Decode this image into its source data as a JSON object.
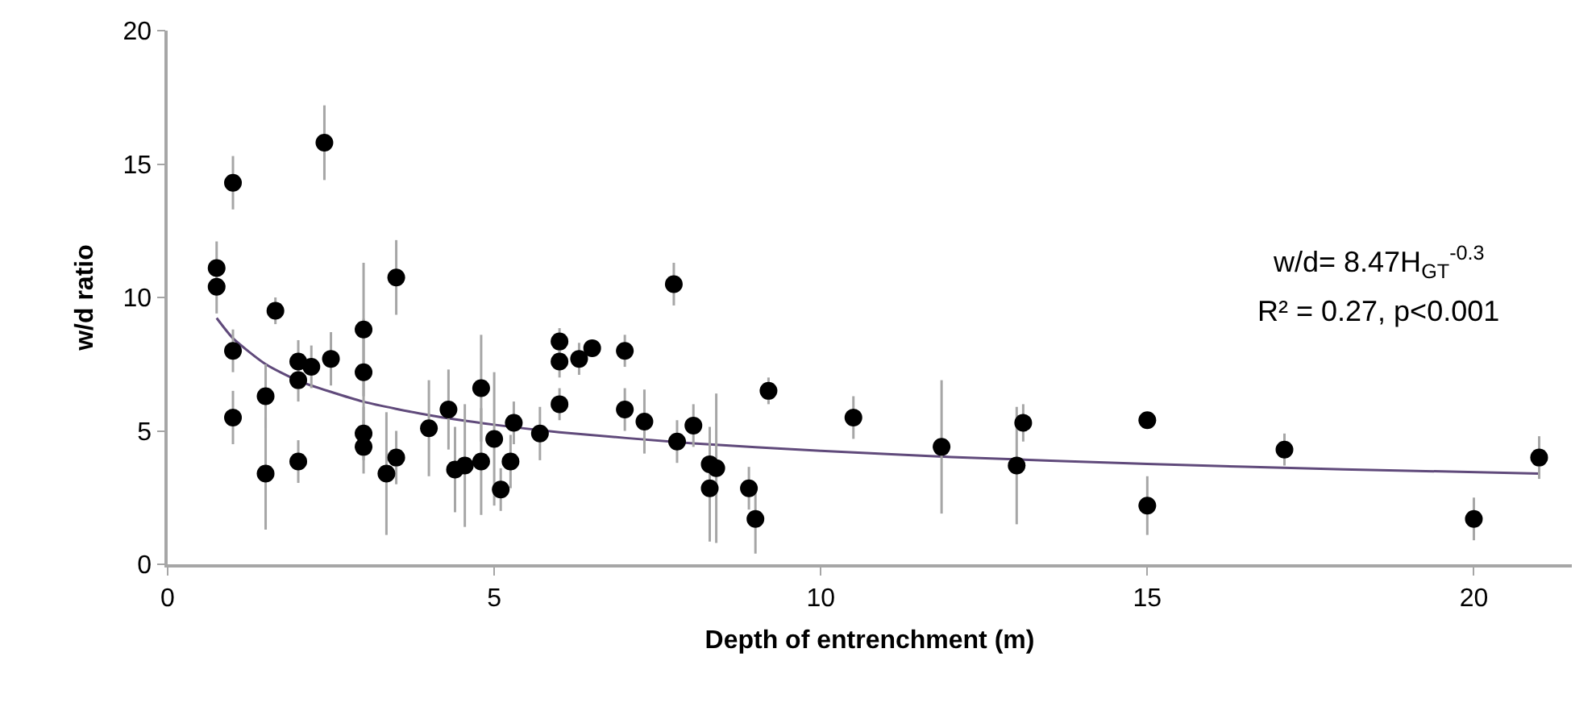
{
  "chart_data": {
    "type": "scatter",
    "xlabel": "Depth of entrenchment (m)",
    "ylabel": "w/d ratio",
    "xlim": [
      0,
      21.5
    ],
    "xticks": [
      0,
      5,
      10,
      15,
      20
    ],
    "ylim": [
      0,
      20
    ],
    "yticks": [
      0,
      5,
      10,
      15,
      20
    ],
    "grid": false,
    "marker": "circle",
    "annotations": [
      "w/d= 8.47H$_{GT}$$^{-0.3}$",
      "R² = 0.27, p<0.001"
    ],
    "series": [
      {
        "color": "#000000",
        "x": [
          0.75,
          0.75,
          1,
          1,
          1,
          1.5,
          1.5,
          1.65,
          2,
          2,
          2,
          2.2,
          2.4,
          2.5,
          3,
          3,
          3,
          3,
          3.35,
          3.5,
          3.5,
          4,
          4.3,
          4.4,
          4.55,
          4.8,
          4.8,
          5,
          5.1,
          5.25,
          5.3,
          5.7,
          6,
          6,
          6,
          6.3,
          6.5,
          7,
          7,
          7.3,
          7.75,
          7.8,
          8.05,
          8.3,
          8.3,
          8.4,
          8.9,
          9,
          9.2,
          10.5,
          11.85,
          13,
          13.1,
          15,
          15,
          17.1,
          20,
          21
        ],
        "values": [
          11.1,
          10.4,
          14.3,
          8,
          5.5,
          6.3,
          3.4,
          9.5,
          7.6,
          6.9,
          3.85,
          7.4,
          15.8,
          7.7,
          8.8,
          7.2,
          4.9,
          4.4,
          3.4,
          10.75,
          4,
          5.1,
          5.8,
          3.55,
          3.7,
          3.85,
          6.6,
          4.7,
          2.8,
          3.85,
          5.3,
          4.9,
          8.35,
          7.6,
          6,
          7.7,
          8.1,
          8,
          5.8,
          5.35,
          10.5,
          4.6,
          5.2,
          3.75,
          2.85,
          3.6,
          2.85,
          1.7,
          6.5,
          5.5,
          4.4,
          3.7,
          5.3,
          5.4,
          2.2,
          4.3,
          1.7,
          4
        ],
        "errors": [
          1,
          1,
          1,
          0.8,
          1,
          1.2,
          2.1,
          0.5,
          0.8,
          0.8,
          0.8,
          0.8,
          1.4,
          1,
          2.5,
          2,
          1,
          1,
          2.3,
          1.4,
          1,
          1.8,
          1.5,
          1.6,
          2.3,
          2,
          2,
          2.5,
          0.8,
          1,
          0.8,
          1,
          0.5,
          0.6,
          0.6,
          0.6,
          0.3,
          0.6,
          0.8,
          1.2,
          0.8,
          0.8,
          0.8,
          1.4,
          2,
          2.8,
          0.8,
          1.3,
          0.5,
          0.8,
          2.5,
          2.2,
          0.7,
          0.3,
          1.1,
          0.6,
          0.8,
          0.8
        ]
      },
      {
        "type": "line",
        "color": "#604a7b",
        "marker": "none",
        "x": [
          0.75,
          1,
          1.5,
          2,
          3,
          4,
          5,
          6,
          8,
          10,
          12,
          15,
          18,
          21
        ],
        "values": [
          9.23,
          8.47,
          7.5,
          6.88,
          6.09,
          5.59,
          5.23,
          4.95,
          4.54,
          4.25,
          4.02,
          3.76,
          3.56,
          3.4
        ]
      }
    ]
  }
}
